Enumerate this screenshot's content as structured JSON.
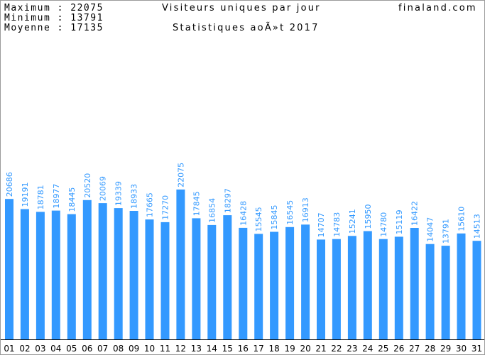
{
  "header": {
    "max_label": "Maximum",
    "max_value": "22075",
    "min_label": "Minimum",
    "min_value": "13791",
    "avg_label": "Moyenne",
    "avg_value": "17135",
    "title": "Visiteurs uniques par jour",
    "subtitle": "Statistiques aoÃ»t 2017",
    "site": "finaland.com"
  },
  "colors": {
    "bar": "#3399ff",
    "label": "#3399ff",
    "axis": "#000000"
  },
  "chart_data": {
    "type": "bar",
    "title": "Visiteurs uniques par jour",
    "subtitle": "Statistiques aoÃ»t 2017",
    "xlabel": "",
    "ylabel": "",
    "ylim": [
      0,
      41000
    ],
    "grid": false,
    "categories": [
      "01",
      "02",
      "03",
      "04",
      "05",
      "06",
      "07",
      "08",
      "09",
      "10",
      "11",
      "12",
      "13",
      "14",
      "15",
      "16",
      "17",
      "18",
      "19",
      "20",
      "21",
      "22",
      "23",
      "24",
      "25",
      "26",
      "27",
      "28",
      "29",
      "30",
      "31"
    ],
    "values": [
      20686,
      19191,
      18781,
      18977,
      18445,
      20520,
      20069,
      19339,
      18933,
      17665,
      17270,
      22075,
      17845,
      16854,
      18297,
      16428,
      15545,
      15845,
      16545,
      16913,
      14707,
      14783,
      15241,
      15950,
      14780,
      15119,
      16422,
      14047,
      13791,
      15610,
      14513
    ]
  }
}
